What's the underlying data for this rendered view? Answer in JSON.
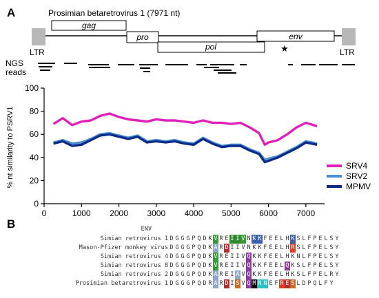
{
  "panel_a": {
    "letter": "A",
    "genome_title": "Prosimian betaretrovirus 1 (7971 nt)",
    "ltr_label": "LTR",
    "genes": [
      "gag",
      "pro",
      "pol",
      "env"
    ],
    "ngs_label_1": "NGS",
    "ngs_label_2": "reads",
    "star": "★"
  },
  "panel_b": {
    "letter": "B",
    "header": "ENV",
    "rows": [
      {
        "name": "Simian retrovirus 1",
        "seq": "DGGGPQDKVREIIVNKKFEELHKSLFPELSY"
      },
      {
        "name": "Mason-Pfizer monkey virus",
        "seq": "DGGGPQDKARDIIVNKKFEELHRSLFPELSY"
      },
      {
        "name": "Simian retrovirus 4",
        "seq": "DGGGPQDKVREIIVQKKFEELHKNLFPELSY"
      },
      {
        "name": "Simian retrovirus 8",
        "seq": "DGGGPQDKVREIIVQKKFEELQKSLFPELSY"
      },
      {
        "name": "Simian retrovirus 2",
        "seq": "DGGGPQDKAREIAVQKKFEELHKSLFPELRY"
      },
      {
        "name": "Prosimian betaretrovirus 1",
        "seq": "DGGGPQDRARDISVQMNNEFRESLDPQLFY"
      }
    ],
    "highlight_colors": {
      "V": "#3a9a3a",
      "A": "#8fa8c8",
      "R": "#e03c1f",
      "I": "#2e8b2e",
      "N": "#2ac3c3",
      "K": "#3c5fb0",
      "Q": "#8e3a9e",
      "L": "#e84fb0",
      "S": "#cc6a28",
      "E": "#b03030",
      "D": "#b03030",
      "M": "#000000"
    }
  },
  "chart_data": {
    "type": "line",
    "title": "",
    "xlabel": "",
    "ylabel": "% nt similarity to PSRV1",
    "xlim": [
      0,
      7500
    ],
    "ylim": [
      0,
      100
    ],
    "xticks": [
      0,
      1000,
      2000,
      3000,
      4000,
      5000,
      6000,
      7000
    ],
    "yticks": [
      0,
      20,
      40,
      60,
      80,
      100
    ],
    "grid": false,
    "legend_position": "right",
    "x": [
      250,
      500,
      750,
      1000,
      1250,
      1500,
      1750,
      2000,
      2250,
      2500,
      2750,
      3000,
      3250,
      3500,
      3750,
      4000,
      4250,
      4500,
      4750,
      5000,
      5250,
      5500,
      5750,
      5900,
      6000,
      6250,
      6500,
      6750,
      7000,
      7300
    ],
    "series": [
      {
        "name": "SRV4",
        "color": "#e020b8",
        "values": [
          69,
          74,
          68,
          71,
          72,
          76,
          78,
          75,
          73,
          72,
          71,
          73,
          72,
          72,
          71,
          70,
          72,
          70,
          70,
          69,
          70,
          66,
          61,
          51,
          53,
          55,
          60,
          66,
          70,
          67
        ]
      },
      {
        "name": "SRV2",
        "color": "#4a8fd0",
        "values": [
          53,
          55,
          52,
          53,
          56,
          60,
          61,
          59,
          57,
          59,
          54,
          55,
          54,
          55,
          53,
          52,
          57,
          53,
          50,
          51,
          51,
          47,
          44,
          38,
          39,
          41,
          45,
          49,
          54,
          52
        ]
      },
      {
        "name": "MPMV",
        "color": "#0a2a88",
        "values": [
          52,
          54,
          50,
          51,
          55,
          59,
          60,
          58,
          56,
          58,
          53,
          54,
          53,
          54,
          52,
          51,
          56,
          52,
          49,
          50,
          50,
          46,
          43,
          36,
          37,
          40,
          44,
          48,
          53,
          51
        ]
      }
    ]
  }
}
